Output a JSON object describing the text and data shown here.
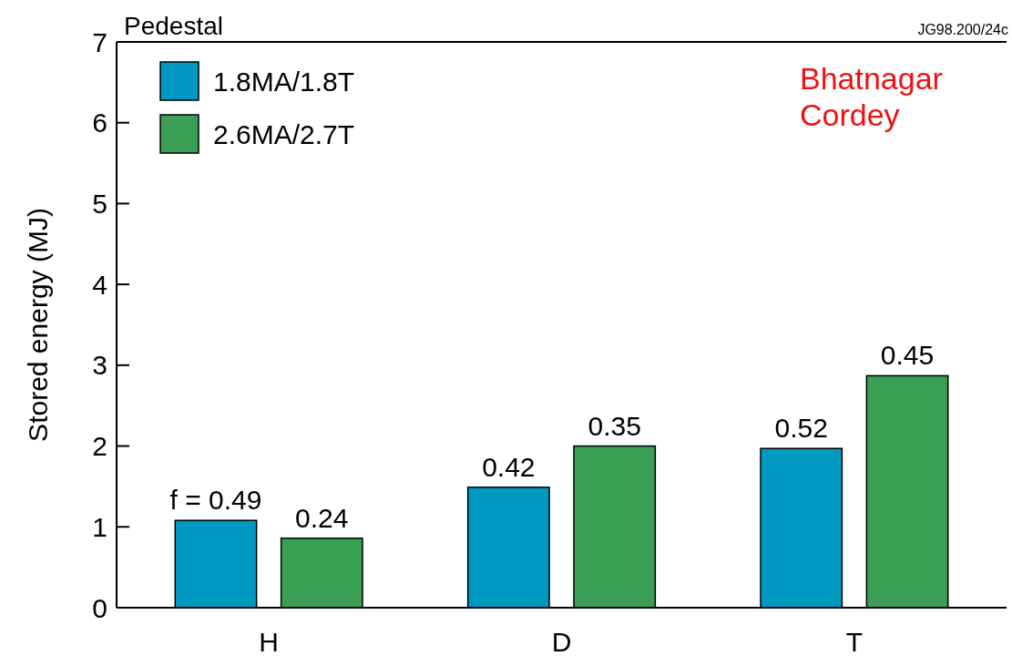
{
  "chart_data": {
    "type": "bar",
    "title": "Pedestal",
    "ylabel": "Stored energy (MJ)",
    "categories": [
      "H",
      "D",
      "T"
    ],
    "series": [
      {
        "name": "1.8MA/1.8T",
        "color": "#0099c2",
        "values": [
          1.08,
          1.49,
          1.97
        ]
      },
      {
        "name": "2.6MA/2.7T",
        "color": "#3a9e55",
        "values": [
          0.86,
          2.0,
          2.87
        ]
      }
    ],
    "ylim": [
      0,
      7
    ],
    "yticks": [
      0,
      1,
      2,
      3,
      4,
      5,
      6,
      7
    ],
    "grid": false,
    "legend": "top left",
    "annotations": [
      "JG98.200/24c",
      "Bhatnagar\nCordey",
      "f = 0.49",
      "0.24",
      "0.42",
      "0.35",
      "0.52",
      "0.45"
    ]
  }
}
